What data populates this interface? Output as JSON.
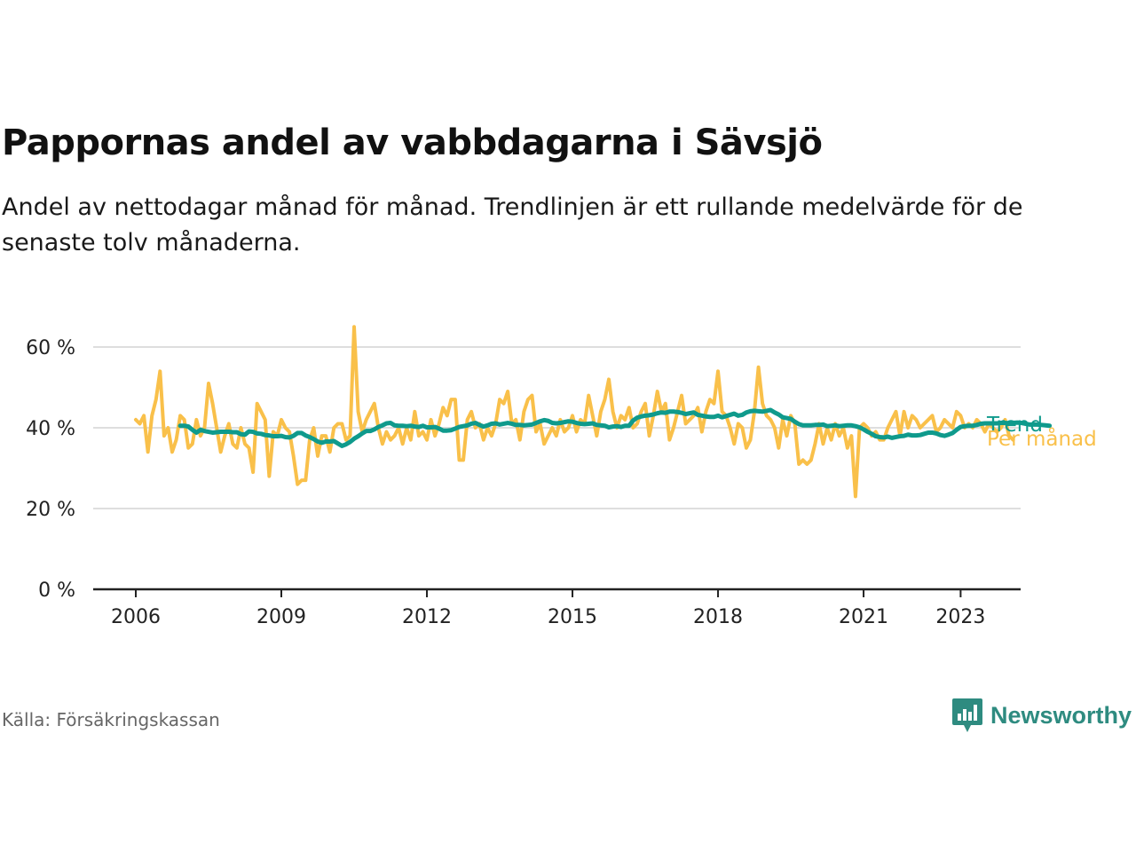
{
  "title": "Pappornas andel av vabbdagarna i Sävsjö",
  "subtitle": "Andel av nettodagar månad för månad. Trendlinjen är ett rullande medelvärde för de senaste tolv månaderna.",
  "source": "Källa: Försäkringskassan",
  "brand": "Newsworthy",
  "colors": {
    "monthly": "#f9c04a",
    "trend": "#0f9a8c",
    "grid": "#d4d4d4",
    "axis": "#222222",
    "brand": "#2e8b80"
  },
  "chart_data": {
    "type": "line",
    "title": "Pappornas andel av vabbdagarna i Sävsjö",
    "x_ticks": [
      "2006",
      "2009",
      "2012",
      "2015",
      "2018",
      "2021",
      "2023"
    ],
    "y_ticks": [
      "0 %",
      "20 %",
      "40 %",
      "60 %"
    ],
    "ylim": [
      0,
      60
    ],
    "grid": true,
    "series": [
      {
        "name": "Per månad",
        "x_start": "2006-01",
        "values": [
          42,
          41,
          43,
          34,
          43,
          47,
          54,
          38,
          40,
          34,
          37,
          43,
          42,
          35,
          36,
          42,
          38,
          40,
          51,
          46,
          40,
          34,
          38,
          41,
          36,
          35,
          40,
          36,
          35,
          29,
          46,
          44,
          42,
          28,
          39,
          38,
          42,
          40,
          39,
          33,
          26,
          27,
          27,
          37,
          40,
          33,
          38,
          38,
          34,
          40,
          41,
          41,
          37,
          38,
          65,
          44,
          39,
          42,
          44,
          46,
          40,
          36,
          39,
          37,
          38,
          40,
          36,
          40,
          37,
          44,
          38,
          39,
          37,
          42,
          38,
          41,
          45,
          43,
          47,
          47,
          32,
          32,
          42,
          44,
          40,
          41,
          37,
          40,
          38,
          41,
          47,
          46,
          49,
          41,
          42,
          37,
          44,
          47,
          48,
          39,
          41,
          36,
          38,
          40,
          38,
          42,
          39,
          40,
          43,
          39,
          42,
          41,
          48,
          43,
          38,
          44,
          47,
          52,
          44,
          40,
          43,
          42,
          45,
          40,
          41,
          44,
          46,
          38,
          43,
          49,
          44,
          46,
          37,
          40,
          44,
          48,
          41,
          42,
          43,
          45,
          39,
          44,
          47,
          46,
          54,
          44,
          43,
          40,
          36,
          41,
          40,
          35,
          37,
          44,
          55,
          46,
          43,
          42,
          40,
          35,
          42,
          38,
          43,
          41,
          31,
          32,
          31,
          32,
          36,
          41,
          36,
          40,
          37,
          41,
          38,
          40,
          35,
          38,
          23,
          40,
          41,
          40,
          38,
          39,
          37,
          37,
          40,
          42,
          44,
          38,
          44,
          40,
          43,
          42,
          40,
          41,
          42,
          43,
          39,
          40,
          42,
          41,
          40,
          44,
          43,
          40,
          41,
          40,
          42,
          41,
          39,
          41,
          40,
          39,
          40,
          42,
          38,
          37
        ],
        "color": "#f9c04a"
      },
      {
        "name": "Trend",
        "x_start": "2006-12",
        "values": [
          40.5,
          40.5,
          40.3,
          39.5,
          38.8,
          39.5,
          39.2,
          39.0,
          38.8,
          38.9,
          39.0,
          39.0,
          39.0,
          38.9,
          38.9,
          38.4,
          38.3,
          39.1,
          39.0,
          38.6,
          38.5,
          38.2,
          38.1,
          37.9,
          37.9,
          38.0,
          37.7,
          37.6,
          38.0,
          38.7,
          38.7,
          38.1,
          37.7,
          37.2,
          36.6,
          36.3,
          36.6,
          36.6,
          36.7,
          36.1,
          35.5,
          35.9,
          36.5,
          37.3,
          37.9,
          38.6,
          39.2,
          39.2,
          39.6,
          40.2,
          40.6,
          41.1,
          41.2,
          40.6,
          40.5,
          40.5,
          40.4,
          40.5,
          40.3,
          40.2,
          40.5,
          40.1,
          40.1,
          40.2,
          39.8,
          39.3,
          39.3,
          39.4,
          39.8,
          40.2,
          40.4,
          40.6,
          41.0,
          41.2,
          40.7,
          40.3,
          40.6,
          41.0,
          41.1,
          40.8,
          41.0,
          41.2,
          41.0,
          40.7,
          40.7,
          40.6,
          40.7,
          40.8,
          41.2,
          41.6,
          41.9,
          41.7,
          41.2,
          41.1,
          41.2,
          41.4,
          41.6,
          41.5,
          41.2,
          41.0,
          40.9,
          41.0,
          41.1,
          40.7,
          40.6,
          40.5,
          40.1,
          40.3,
          40.4,
          40.2,
          40.5,
          40.5,
          41.8,
          42.5,
          42.8,
          43.0,
          43.1,
          43.3,
          43.6,
          43.8,
          43.7,
          44.0,
          44.0,
          43.9,
          43.7,
          43.4,
          43.6,
          43.8,
          43.2,
          43.0,
          42.8,
          42.7,
          42.7,
          43.0,
          42.6,
          42.9,
          43.2,
          43.5,
          43.0,
          43.2,
          43.8,
          44.1,
          44.2,
          44.1,
          44.0,
          44.2,
          44.4,
          43.8,
          43.3,
          42.6,
          42.4,
          42.2,
          41.5,
          40.9,
          40.6,
          40.6,
          40.6,
          40.7,
          40.7,
          40.8,
          40.4,
          40.5,
          40.6,
          40.4,
          40.5,
          40.6,
          40.6,
          40.4,
          40.1,
          39.6,
          39.0,
          38.5,
          37.9,
          37.7,
          37.6,
          37.8,
          37.5,
          37.7,
          37.9,
          38.0,
          38.3,
          38.1,
          38.1,
          38.2,
          38.5,
          38.8,
          38.8,
          38.6,
          38.2,
          38.0,
          38.3,
          38.7,
          39.5,
          40.2,
          40.4,
          40.5,
          40.5,
          40.7,
          41.0,
          41.1,
          41.1,
          41.1,
          41.1,
          41.2,
          41.2,
          41.1,
          41.2,
          41.3,
          41.2,
          41.0,
          40.8,
          40.8,
          40.8,
          40.7,
          40.6,
          40.5
        ],
        "color": "#0f9a8c"
      }
    ],
    "labels": {
      "trend": "Trend",
      "monthly": "Per månad"
    }
  }
}
